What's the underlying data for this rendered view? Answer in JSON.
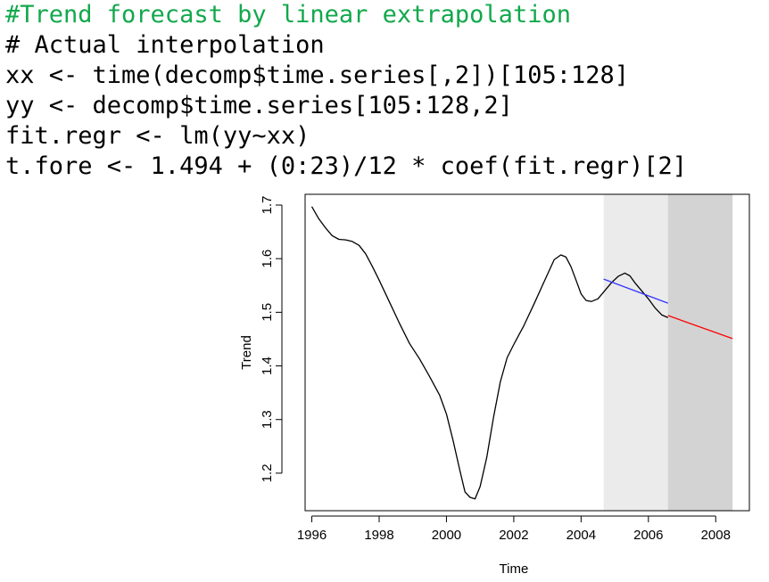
{
  "code": {
    "lines": [
      {
        "text": "#Trend forecast by linear extrapolation",
        "comment": true
      },
      {
        "text": "# Actual interpolation",
        "comment": false
      },
      {
        "text": "xx <- time(decomp$time.series[,2])[105:128]",
        "comment": false
      },
      {
        "text": "yy <- decomp$time.series[105:128,2]",
        "comment": false
      },
      {
        "text": "fit.regr <- lm(yy~xx)",
        "comment": false
      },
      {
        "text": "t.fore <- 1.494 + (0:23)/12 * coef(fit.regr)[2]",
        "comment": false
      }
    ],
    "comment_color": "#12a84c"
  },
  "chart_data": {
    "type": "line",
    "title": "",
    "xlabel": "Time",
    "ylabel": "Trend",
    "xlim": [
      1995.8,
      2009.0
    ],
    "ylim": [
      1.13,
      1.72
    ],
    "x_ticks": [
      1996,
      1998,
      2000,
      2002,
      2004,
      2006,
      2008
    ],
    "y_ticks": [
      1.2,
      1.3,
      1.4,
      1.5,
      1.6,
      1.7
    ],
    "grid": false,
    "shaded_regions": [
      {
        "x_start": 2004.67,
        "x_end": 2006.58,
        "color": "#ebebeb"
      },
      {
        "x_start": 2006.58,
        "x_end": 2008.5,
        "color": "#d3d3d3"
      }
    ],
    "series": [
      {
        "color": "#000000",
        "x": [
          1996.0,
          1996.2,
          1996.4,
          1996.6,
          1996.8,
          1997.0,
          1997.2,
          1997.4,
          1997.6,
          1997.8,
          1998.0,
          1998.3,
          1998.6,
          1998.9,
          1999.2,
          1999.5,
          1999.8,
          2000.0,
          2000.2,
          2000.4,
          2000.55,
          2000.7,
          2000.85,
          2001.0,
          2001.2,
          2001.4,
          2001.6,
          2001.8,
          2002.0,
          2002.3,
          2002.6,
          2002.9,
          2003.2,
          2003.4,
          2003.55,
          2003.7,
          2003.85,
          2004.0,
          2004.15,
          2004.3,
          2004.5,
          2004.7,
          2004.9,
          2005.1,
          2005.3,
          2005.45,
          2005.6,
          2005.8,
          2006.0,
          2006.2,
          2006.4,
          2006.58
        ],
        "values": [
          1.697,
          1.675,
          1.658,
          1.643,
          1.636,
          1.635,
          1.632,
          1.625,
          1.609,
          1.585,
          1.56,
          1.52,
          1.48,
          1.442,
          1.413,
          1.38,
          1.345,
          1.31,
          1.26,
          1.205,
          1.165,
          1.155,
          1.152,
          1.175,
          1.23,
          1.305,
          1.37,
          1.415,
          1.44,
          1.475,
          1.515,
          1.557,
          1.598,
          1.607,
          1.603,
          1.585,
          1.56,
          1.534,
          1.522,
          1.52,
          1.525,
          1.54,
          1.555,
          1.567,
          1.573,
          1.568,
          1.555,
          1.54,
          1.525,
          1.508,
          1.495,
          1.49
        ]
      },
      {
        "color": "#3333ff",
        "x": [
          2004.67,
          2006.58
        ],
        "values": [
          1.562,
          1.517
        ]
      },
      {
        "color": "#ff0000",
        "x": [
          2006.58,
          2008.5
        ],
        "values": [
          1.494,
          1.451
        ]
      }
    ]
  }
}
